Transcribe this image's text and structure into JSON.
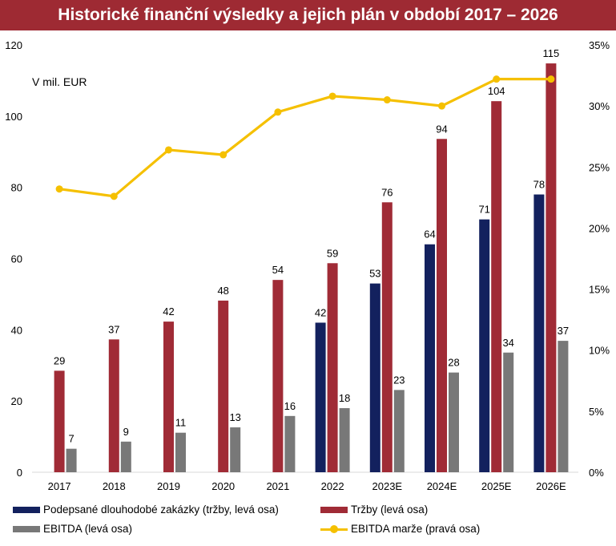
{
  "title": "Historické finanční výsledky a jejich plán v období 2017 – 2026",
  "colors": {
    "title_bg": "#9e2a33",
    "contracts": "#13215e",
    "revenue": "#a02b36",
    "ebitda": "#787878",
    "margin": "#f5c000"
  },
  "chart_data": {
    "type": "bar",
    "title": "Historické finanční výsledky a jejich plán v období 2017 – 2026",
    "annotation": "V mil. EUR",
    "categories": [
      "2017",
      "2018",
      "2019",
      "2020",
      "2021",
      "2022",
      "2023E",
      "2024E",
      "2025E",
      "2026E"
    ],
    "left_axis": {
      "ticks": [
        "0",
        "20",
        "40",
        "60",
        "80",
        "100",
        "120"
      ],
      "ylim": [
        0,
        120
      ]
    },
    "right_axis": {
      "ticks": [
        "0%",
        "5%",
        "10%",
        "15%",
        "20%",
        "25%",
        "30%",
        "35%"
      ],
      "ylim": [
        0,
        35
      ]
    },
    "grid": false,
    "legend_position": "bottom",
    "series": [
      {
        "name": "Podepsané dlouhodobé zakázky (tržby, levá osa)",
        "type": "bar",
        "axis": "left",
        "values": [
          null,
          null,
          null,
          null,
          null,
          42,
          53,
          64,
          71,
          78
        ],
        "labels": [
          "",
          "",
          "",
          "",
          "",
          "42",
          "53",
          "64",
          "71",
          "78"
        ]
      },
      {
        "name": "Tržby (levá osa)",
        "type": "bar",
        "axis": "left",
        "values": [
          28.5,
          37.3,
          42.3,
          48.2,
          54.0,
          58.7,
          75.8,
          93.6,
          104.2,
          114.8
        ],
        "labels": [
          "29",
          "37",
          "42",
          "48",
          "54",
          "59",
          "76",
          "94",
          "104",
          "115"
        ]
      },
      {
        "name": "EBITDA (levá osa)",
        "type": "bar",
        "axis": "left",
        "values": [
          6.6,
          8.6,
          11.1,
          12.6,
          15.8,
          18.0,
          23.1,
          28.0,
          33.6,
          36.9
        ],
        "labels": [
          "7",
          "9",
          "11",
          "13",
          "16",
          "18",
          "23",
          "28",
          "34",
          "37"
        ]
      },
      {
        "name": "EBITDA marže (pravá osa)",
        "type": "line",
        "axis": "right",
        "values": [
          23.2,
          22.6,
          26.4,
          26.0,
          29.5,
          30.8,
          30.5,
          30.0,
          32.2,
          32.2
        ]
      }
    ]
  },
  "legend": [
    {
      "label": "Podepsané dlouhodobé zakázky (tržby, levá osa)"
    },
    {
      "label": "Tržby (levá osa)"
    },
    {
      "label": "EBITDA (levá osa)"
    },
    {
      "label": "EBITDA marže (pravá osa)"
    }
  ]
}
